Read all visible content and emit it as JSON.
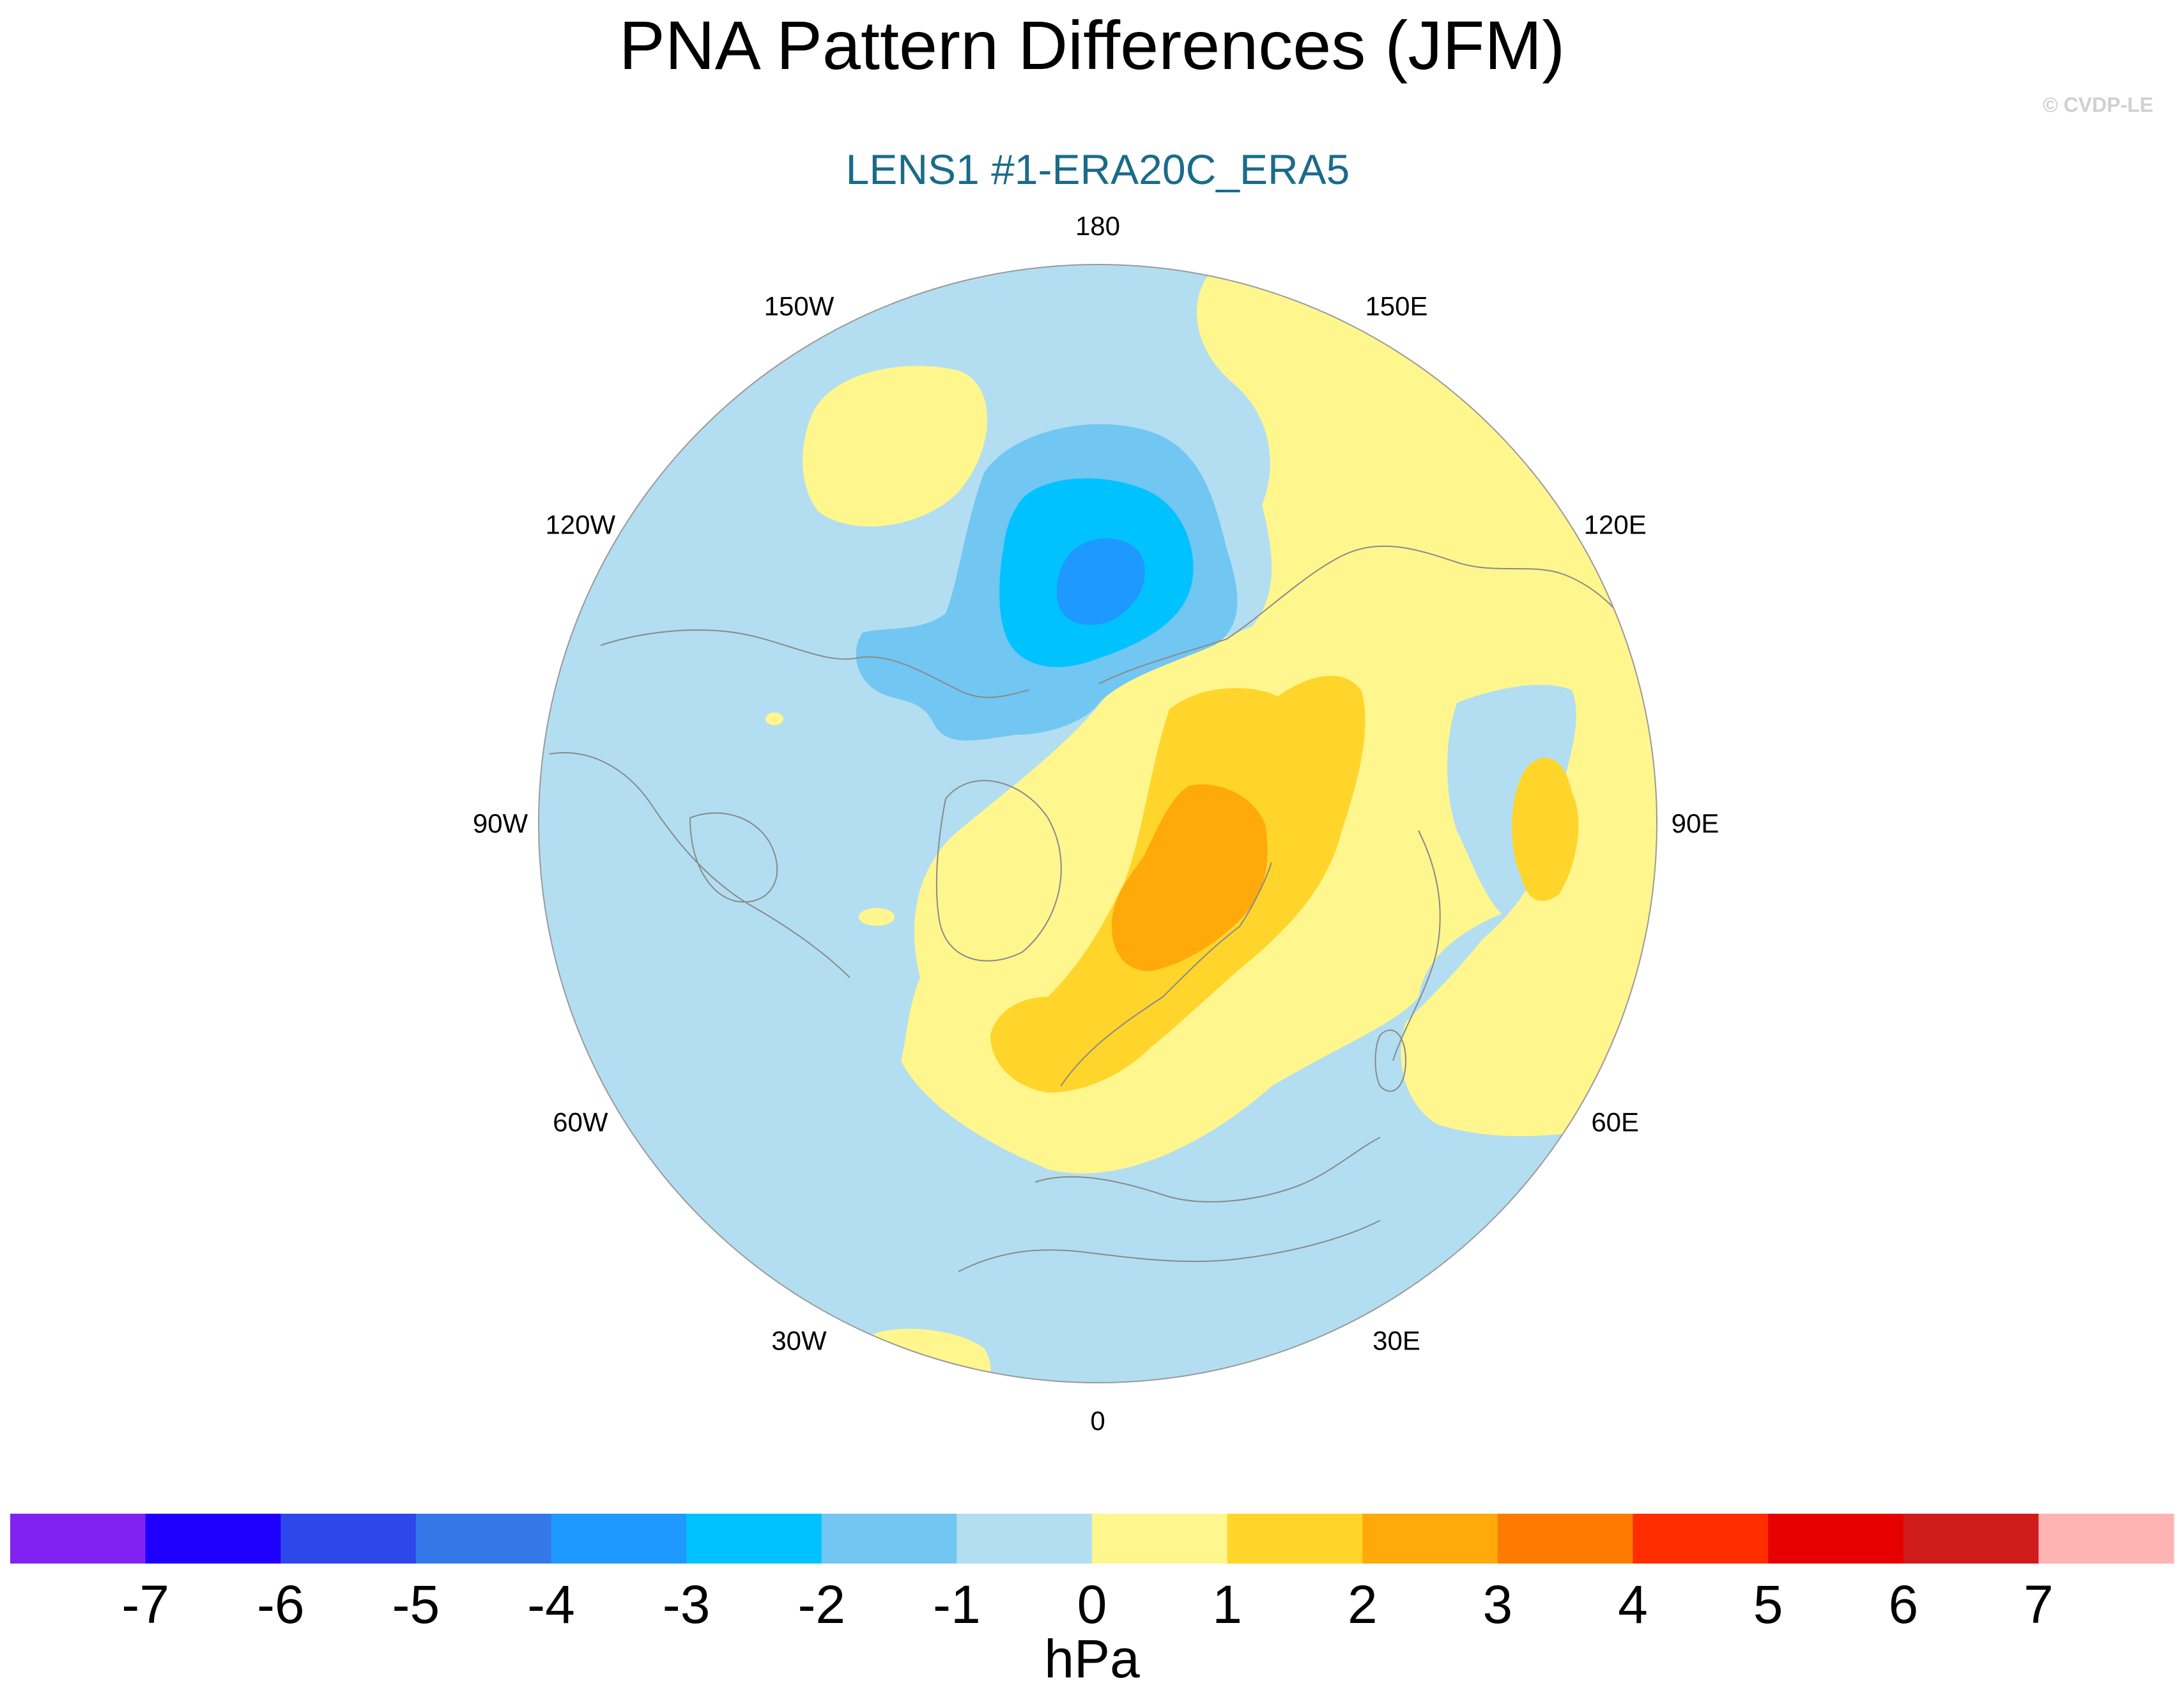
{
  "title": "PNA Pattern Differences (JFM)",
  "subtitle": "LENS1 #1-ERA20C_ERA5",
  "copyright": "© CVDP-LE",
  "colors": {
    "title": "#000000",
    "subtitle": "#1a6b8a",
    "copyright": "#d0d0d0",
    "coastline": "#8a8a8a",
    "map_border": "#9a9a9a"
  },
  "longitude_labels": [
    {
      "label": "180",
      "lon": 180
    },
    {
      "label": "150E",
      "lon": 150
    },
    {
      "label": "120E",
      "lon": 120
    },
    {
      "label": "90E",
      "lon": 90
    },
    {
      "label": "60E",
      "lon": 60
    },
    {
      "label": "30E",
      "lon": 30
    },
    {
      "label": "0",
      "lon": 0
    },
    {
      "label": "30W",
      "lon": -30
    },
    {
      "label": "60W",
      "lon": -60
    },
    {
      "label": "90W",
      "lon": -90
    },
    {
      "label": "120W",
      "lon": -120
    },
    {
      "label": "150W",
      "lon": -150
    }
  ],
  "colorbar": {
    "unit_label": "hPa",
    "bins": [
      {
        "color": "#8122f0"
      },
      {
        "color": "#1f00ff"
      },
      {
        "color": "#2e47eb"
      },
      {
        "color": "#3478e8"
      },
      {
        "color": "#1d99ff"
      },
      {
        "color": "#00c2ff"
      },
      {
        "color": "#72c6f2"
      },
      {
        "color": "#b3def1"
      },
      {
        "color": "#fff68e"
      },
      {
        "color": "#ffd52b"
      },
      {
        "color": "#ffa90a"
      },
      {
        "color": "#ff7a00"
      },
      {
        "color": "#ff2d00"
      },
      {
        "color": "#e60000"
      },
      {
        "color": "#d01b1b"
      },
      {
        "color": "#ffb3b3"
      }
    ],
    "tick_labels": [
      "-7",
      "-6",
      "-5",
      "-4",
      "-3",
      "-2",
      "-1",
      "0",
      "1",
      "2",
      "3",
      "4",
      "5",
      "6",
      "7"
    ]
  },
  "anomaly_regions": [
    {
      "name": "north-pacific-negative-outer",
      "level": "-1 to -2",
      "color": "#72c6f2"
    },
    {
      "name": "north-pacific-negative-mid",
      "level": "-2 to -3",
      "color": "#00c2ff"
    },
    {
      "name": "north-pacific-negative-core",
      "level": "-3 to -4",
      "color": "#1d99ff"
    },
    {
      "name": "eurasia-positive-outer",
      "level": "0 to 1",
      "color": "#fff68e"
    },
    {
      "name": "scandinavia-positive-mid",
      "level": "1 to 2",
      "color": "#ffd52b"
    },
    {
      "name": "scandinavia-positive-core",
      "level": "2 to 3",
      "color": "#ffa90a"
    },
    {
      "name": "pacific-positive-patch",
      "level": "0 to 1",
      "color": "#fff68e"
    },
    {
      "name": "central-asia-positive-patch",
      "level": "1 to 2",
      "color": "#ffd52b"
    }
  ]
}
